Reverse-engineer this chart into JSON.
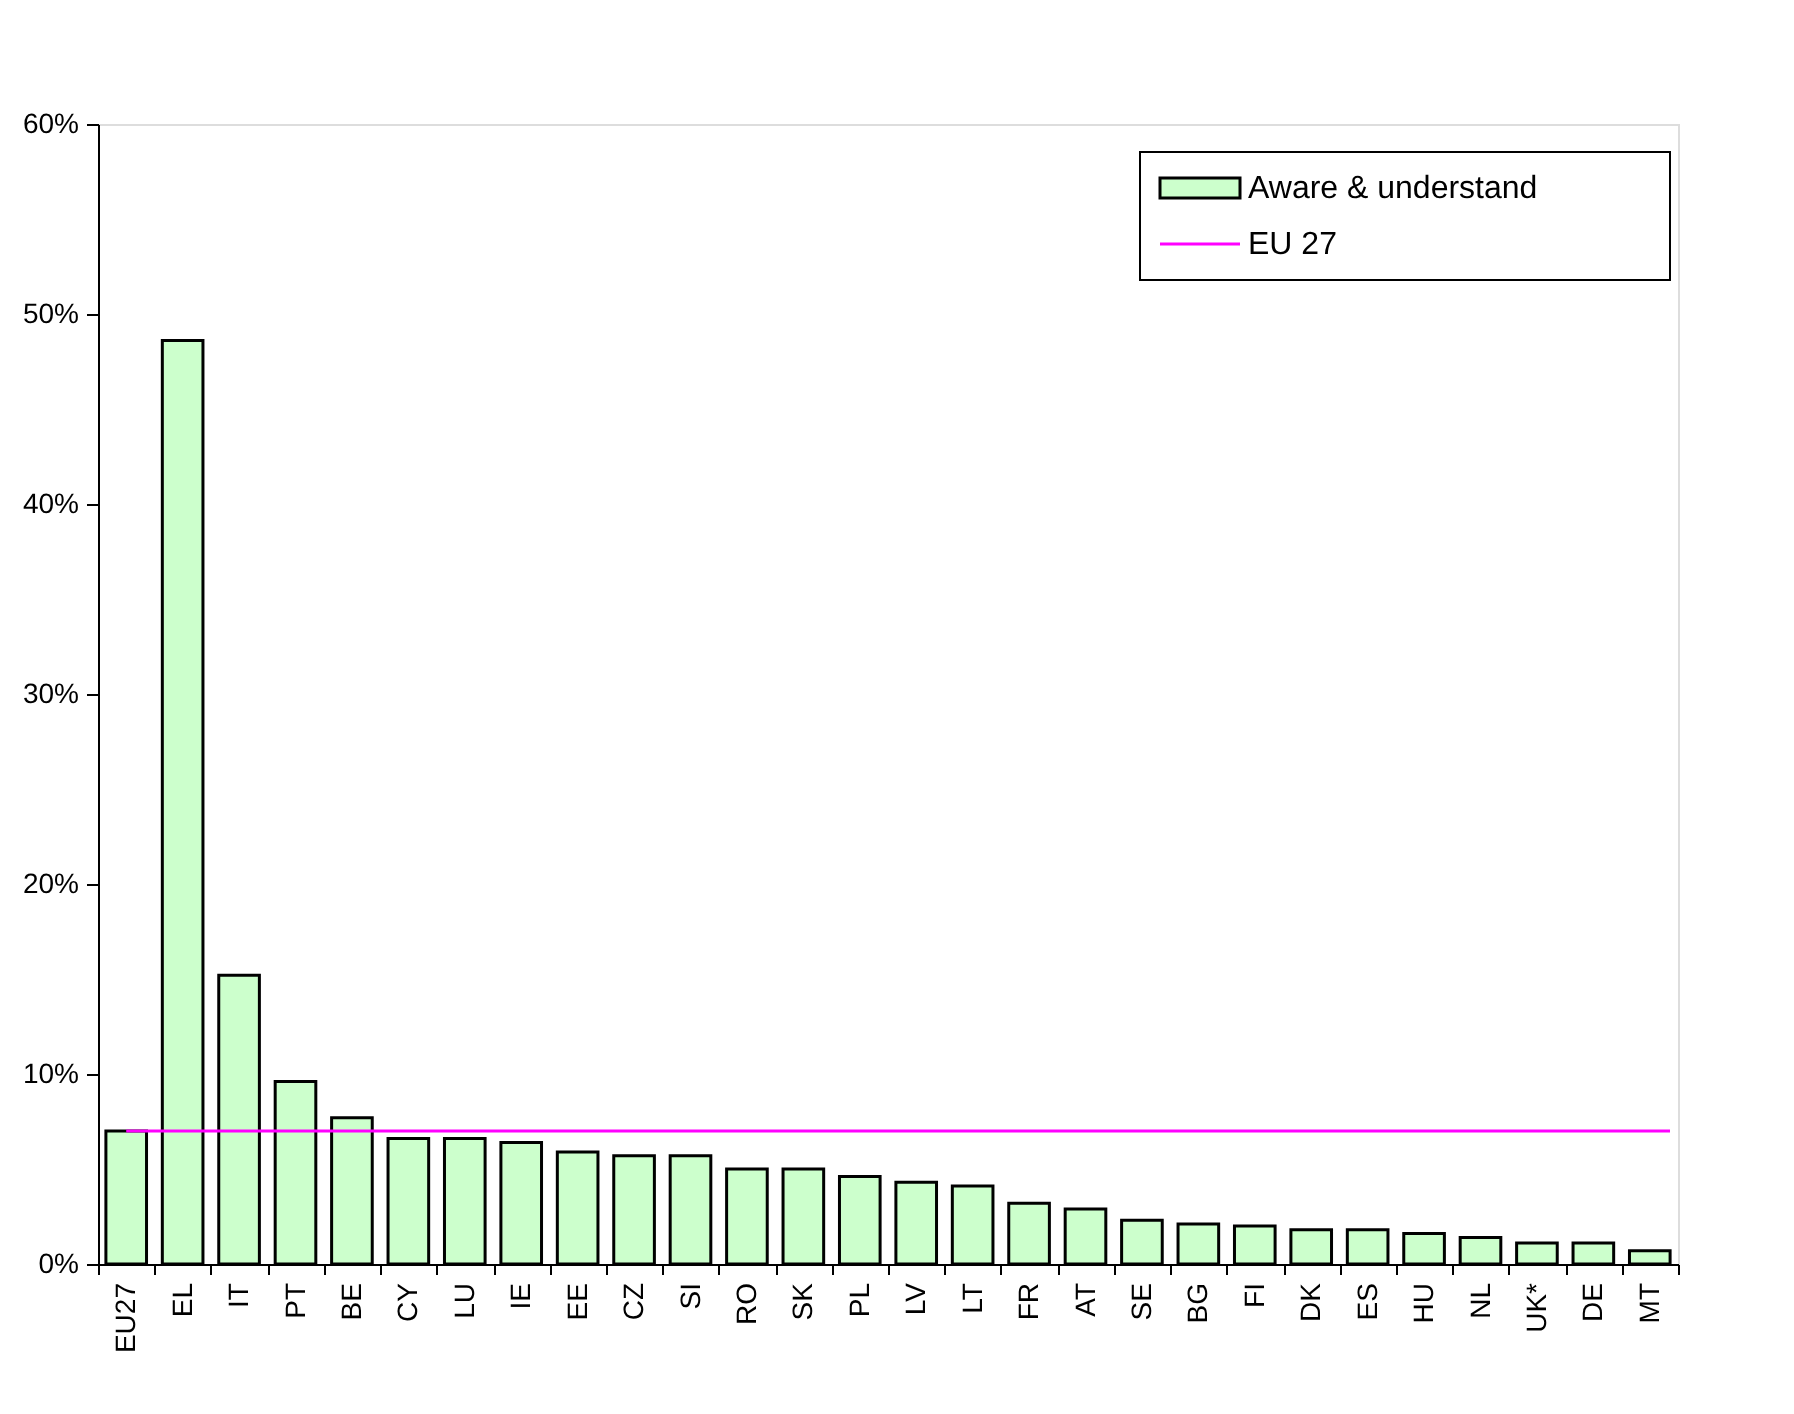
{
  "chart_data": {
    "type": "bar",
    "categories": [
      "EU27",
      "EL",
      "IT",
      "PT",
      "BE",
      "CY",
      "LU",
      "IE",
      "EE",
      "CZ",
      "SI",
      "RO",
      "SK",
      "PL",
      "LV",
      "LT",
      "FR",
      "AT",
      "SE",
      "BG",
      "FI",
      "DK",
      "ES",
      "HU",
      "NL",
      "UK*",
      "DE",
      "MT"
    ],
    "series": [
      {
        "name": "Aware & understand",
        "color": "#ccffcc",
        "values": [
          7.0,
          48.6,
          15.2,
          9.6,
          7.7,
          6.6,
          6.6,
          6.4,
          5.9,
          5.7,
          5.7,
          5.0,
          5.0,
          4.6,
          4.3,
          4.1,
          3.2,
          2.9,
          2.3,
          2.1,
          2.0,
          1.8,
          1.8,
          1.6,
          1.4,
          1.1,
          1.1,
          0.7
        ]
      }
    ],
    "ylim": [
      0,
      60
    ],
    "yticks": [
      {
        "value": 0,
        "label": "0%"
      },
      {
        "value": 10,
        "label": "10%"
      },
      {
        "value": 20,
        "label": "20%"
      },
      {
        "value": 30,
        "label": "30%"
      },
      {
        "value": 40,
        "label": "40%"
      },
      {
        "value": 50,
        "label": "50%"
      },
      {
        "value": 60,
        "label": "60%"
      }
    ],
    "ref_lines": [
      {
        "axis": "y",
        "value": 7.0,
        "label": "EU 27",
        "color": "#ff00ff"
      }
    ],
    "legend": "top right",
    "grid": false
  }
}
